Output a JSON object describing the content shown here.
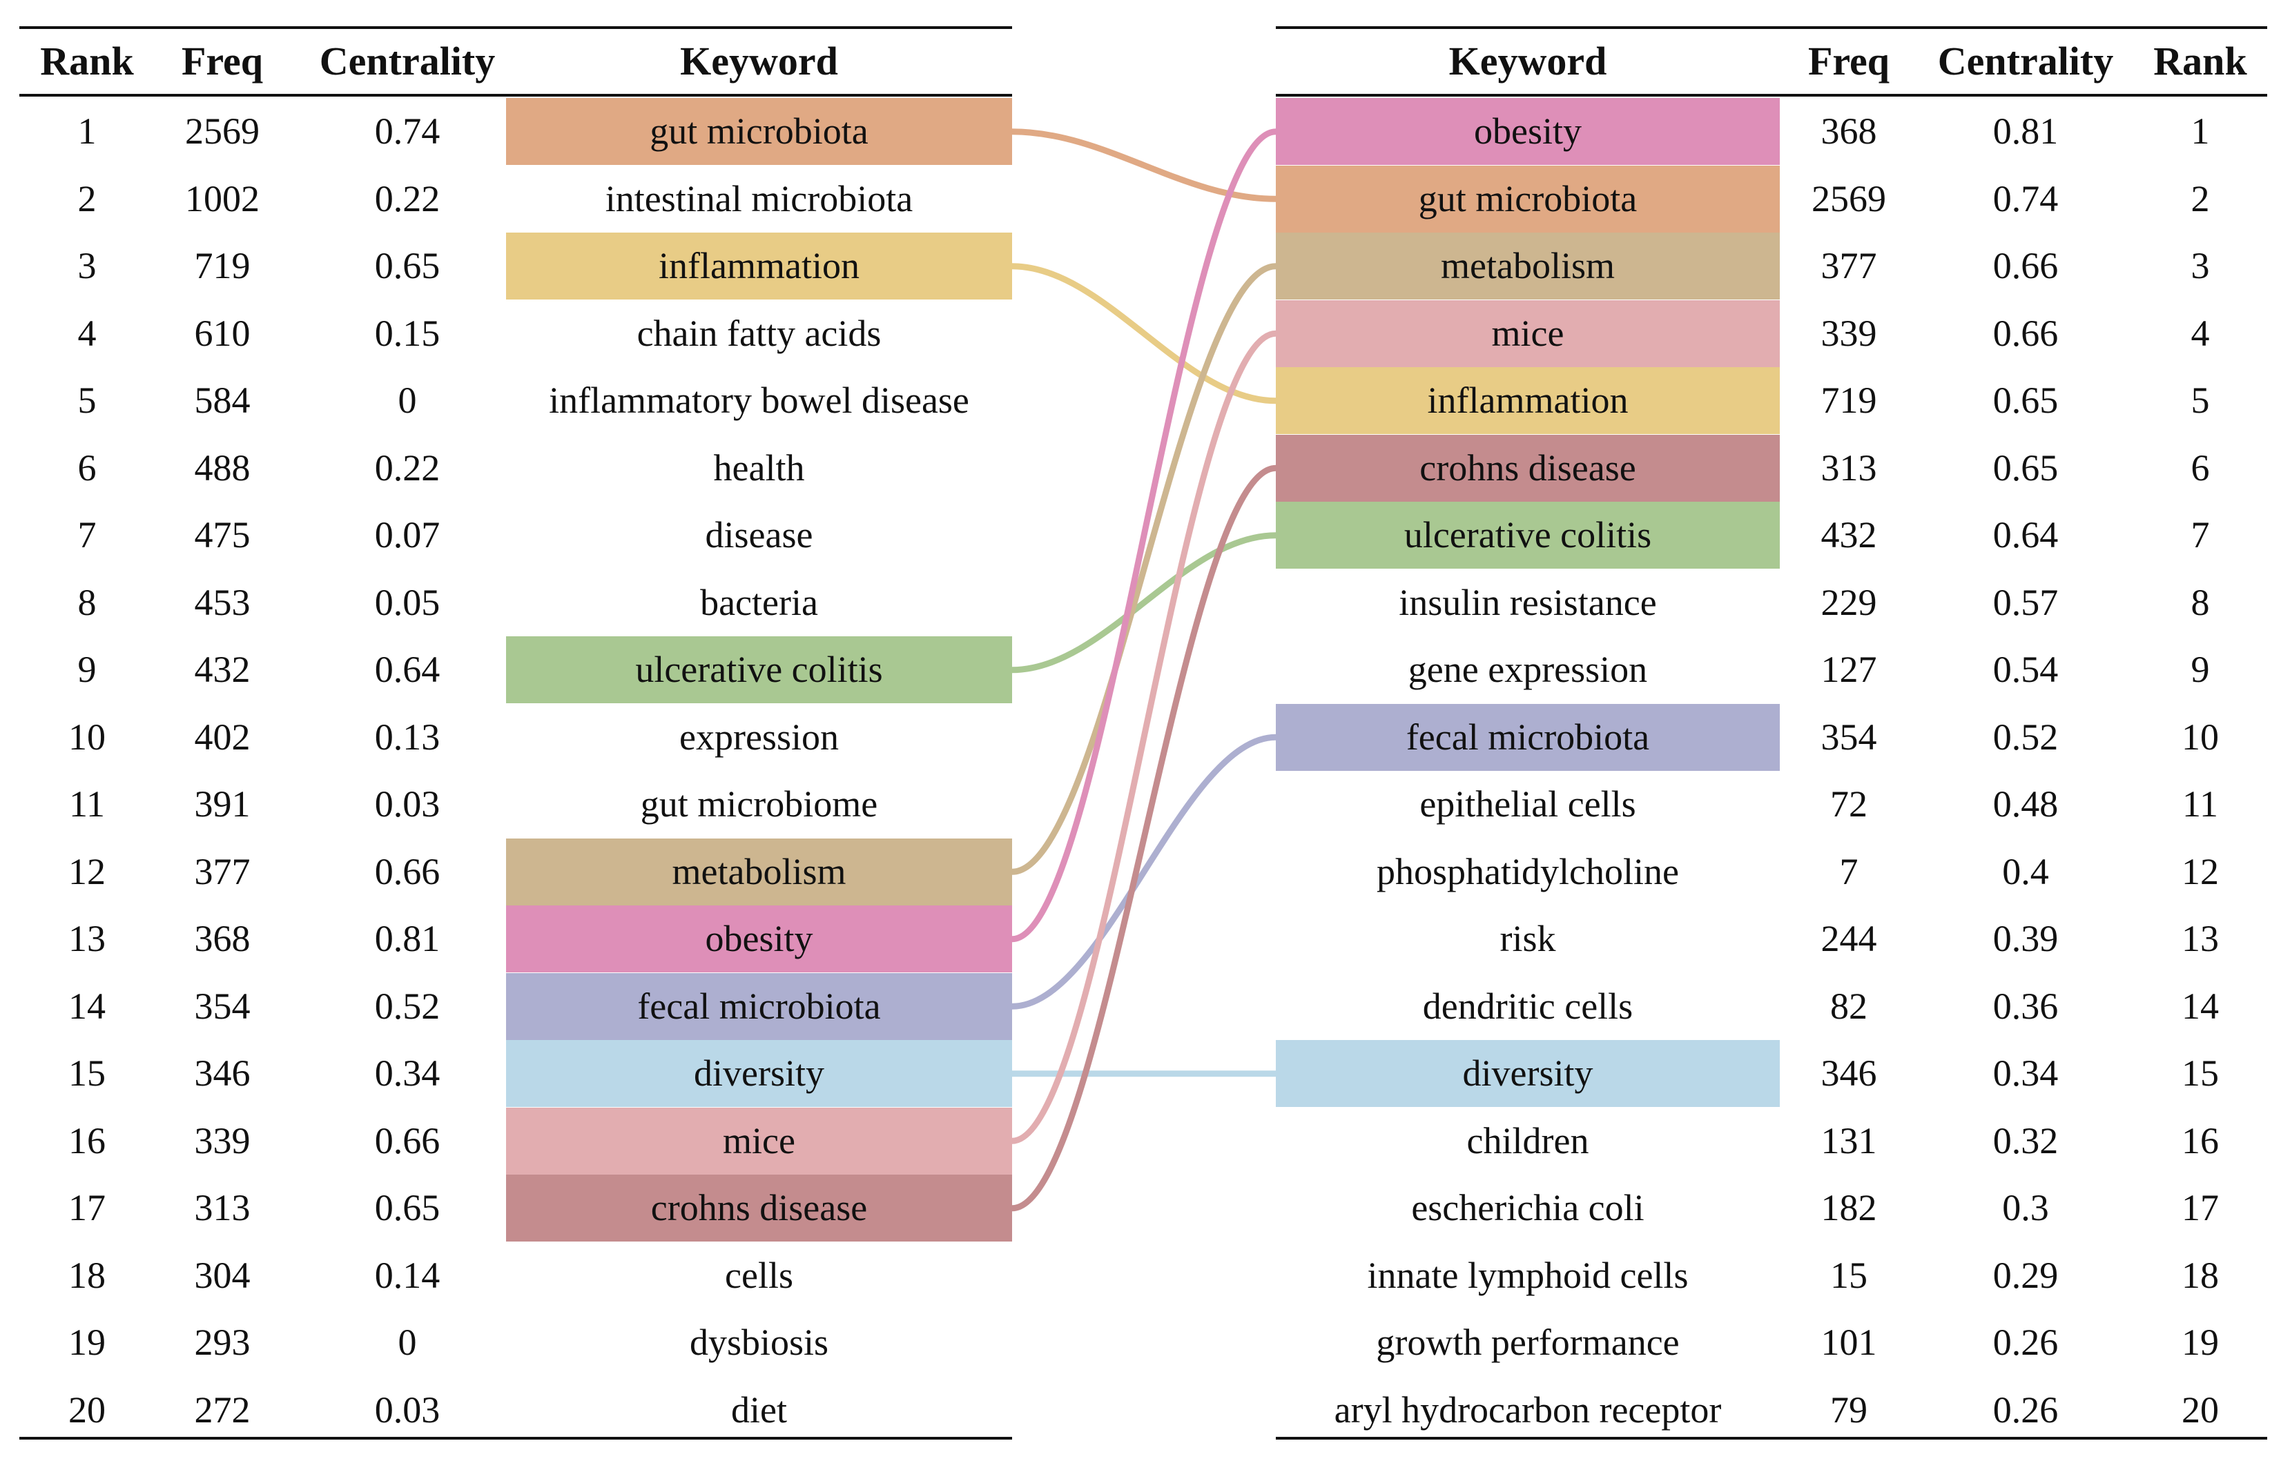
{
  "chart_data": {
    "type": "table",
    "left_table": {
      "headers": [
        "Rank",
        "Freq",
        "Centrality",
        "Keyword"
      ],
      "rows": [
        {
          "rank": "1",
          "freq": "2569",
          "centrality": "0.74",
          "keyword": "gut microbiota",
          "highlight": "#e0a984"
        },
        {
          "rank": "2",
          "freq": "1002",
          "centrality": "0.22",
          "keyword": "intestinal microbiota",
          "highlight": null
        },
        {
          "rank": "3",
          "freq": "719",
          "centrality": "0.65",
          "keyword": "inflammation",
          "highlight": "#e8cc86"
        },
        {
          "rank": "4",
          "freq": "610",
          "centrality": "0.15",
          "keyword": "chain fatty acids",
          "highlight": null
        },
        {
          "rank": "5",
          "freq": "584",
          "centrality": "0",
          "keyword": "inflammatory bowel disease",
          "highlight": null
        },
        {
          "rank": "6",
          "freq": "488",
          "centrality": "0.22",
          "keyword": "health",
          "highlight": null
        },
        {
          "rank": "7",
          "freq": "475",
          "centrality": "0.07",
          "keyword": "disease",
          "highlight": null
        },
        {
          "rank": "8",
          "freq": "453",
          "centrality": "0.05",
          "keyword": "bacteria",
          "highlight": null
        },
        {
          "rank": "9",
          "freq": "432",
          "centrality": "0.64",
          "keyword": "ulcerative colitis",
          "highlight": "#a9c892"
        },
        {
          "rank": "10",
          "freq": "402",
          "centrality": "0.13",
          "keyword": "expression",
          "highlight": null
        },
        {
          "rank": "11",
          "freq": "391",
          "centrality": "0.03",
          "keyword": "gut microbiome",
          "highlight": null
        },
        {
          "rank": "12",
          "freq": "377",
          "centrality": "0.66",
          "keyword": "metabolism",
          "highlight": "#cdb690"
        },
        {
          "rank": "13",
          "freq": "368",
          "centrality": "0.81",
          "keyword": "obesity",
          "highlight": "#de8fb8"
        },
        {
          "rank": "14",
          "freq": "354",
          "centrality": "0.52",
          "keyword": "fecal microbiota",
          "highlight": "#adafd0"
        },
        {
          "rank": "15",
          "freq": "346",
          "centrality": "0.34",
          "keyword": "diversity",
          "highlight": "#bad8e8"
        },
        {
          "rank": "16",
          "freq": "339",
          "centrality": "0.66",
          "keyword": "mice",
          "highlight": "#e2adb0"
        },
        {
          "rank": "17",
          "freq": "313",
          "centrality": "0.65",
          "keyword": "crohns disease",
          "highlight": "#c48c8e"
        },
        {
          "rank": "18",
          "freq": "304",
          "centrality": "0.14",
          "keyword": "cells",
          "highlight": null
        },
        {
          "rank": "19",
          "freq": "293",
          "centrality": "0",
          "keyword": "dysbiosis",
          "highlight": null
        },
        {
          "rank": "20",
          "freq": "272",
          "centrality": "0.03",
          "keyword": "diet",
          "highlight": null
        }
      ]
    },
    "right_table": {
      "headers": [
        "Keyword",
        "Freq",
        "Centrality",
        "Rank"
      ],
      "rows": [
        {
          "rank": "1",
          "freq": "368",
          "centrality": "0.81",
          "keyword": "obesity",
          "highlight": "#de8fb8"
        },
        {
          "rank": "2",
          "freq": "2569",
          "centrality": "0.74",
          "keyword": "gut microbiota",
          "highlight": "#e0a984"
        },
        {
          "rank": "3",
          "freq": "377",
          "centrality": "0.66",
          "keyword": "metabolism",
          "highlight": "#cdb690"
        },
        {
          "rank": "4",
          "freq": "339",
          "centrality": "0.66",
          "keyword": "mice",
          "highlight": "#e2adb0"
        },
        {
          "rank": "5",
          "freq": "719",
          "centrality": "0.65",
          "keyword": "inflammation",
          "highlight": "#e8cc86"
        },
        {
          "rank": "6",
          "freq": "313",
          "centrality": "0.65",
          "keyword": "crohns disease",
          "highlight": "#c48c8e"
        },
        {
          "rank": "7",
          "freq": "432",
          "centrality": "0.64",
          "keyword": "ulcerative colitis",
          "highlight": "#a9c892"
        },
        {
          "rank": "8",
          "freq": "229",
          "centrality": "0.57",
          "keyword": "insulin resistance",
          "highlight": null
        },
        {
          "rank": "9",
          "freq": "127",
          "centrality": "0.54",
          "keyword": "gene expression",
          "highlight": null
        },
        {
          "rank": "10",
          "freq": "354",
          "centrality": "0.52",
          "keyword": "fecal microbiota",
          "highlight": "#adafd0"
        },
        {
          "rank": "11",
          "freq": "72",
          "centrality": "0.48",
          "keyword": "epithelial cells",
          "highlight": null
        },
        {
          "rank": "12",
          "freq": "7",
          "centrality": "0.4",
          "keyword": "phosphatidylcholine",
          "highlight": null
        },
        {
          "rank": "13",
          "freq": "244",
          "centrality": "0.39",
          "keyword": "risk",
          "highlight": null
        },
        {
          "rank": "14",
          "freq": "82",
          "centrality": "0.36",
          "keyword": "dendritic cells",
          "highlight": null
        },
        {
          "rank": "15",
          "freq": "346",
          "centrality": "0.34",
          "keyword": "diversity",
          "highlight": "#bad8e8"
        },
        {
          "rank": "16",
          "freq": "131",
          "centrality": "0.32",
          "keyword": "children",
          "highlight": null
        },
        {
          "rank": "17",
          "freq": "182",
          "centrality": "0.3",
          "keyword": "escherichia coli",
          "highlight": null
        },
        {
          "rank": "18",
          "freq": "15",
          "centrality": "0.29",
          "keyword": "innate lymphoid cells",
          "highlight": null
        },
        {
          "rank": "19",
          "freq": "101",
          "centrality": "0.26",
          "keyword": "growth performance",
          "highlight": null
        },
        {
          "rank": "20",
          "freq": "79",
          "centrality": "0.26",
          "keyword": "aryl hydrocarbon receptor",
          "highlight": null
        }
      ]
    },
    "links": [
      {
        "keyword": "gut microbiota",
        "from_rank": 1,
        "to_rank": 2,
        "color": "#e0a984"
      },
      {
        "keyword": "inflammation",
        "from_rank": 3,
        "to_rank": 5,
        "color": "#e8cc86"
      },
      {
        "keyword": "ulcerative colitis",
        "from_rank": 9,
        "to_rank": 7,
        "color": "#a9c892"
      },
      {
        "keyword": "metabolism",
        "from_rank": 12,
        "to_rank": 3,
        "color": "#cdb690"
      },
      {
        "keyword": "obesity",
        "from_rank": 13,
        "to_rank": 1,
        "color": "#de8fb8"
      },
      {
        "keyword": "fecal microbiota",
        "from_rank": 14,
        "to_rank": 10,
        "color": "#adafd0"
      },
      {
        "keyword": "diversity",
        "from_rank": 15,
        "to_rank": 15,
        "color": "#bad8e8"
      },
      {
        "keyword": "mice",
        "from_rank": 16,
        "to_rank": 4,
        "color": "#e2adb0"
      },
      {
        "keyword": "crohns disease",
        "from_rank": 17,
        "to_rank": 6,
        "color": "#c48c8e"
      }
    ]
  }
}
